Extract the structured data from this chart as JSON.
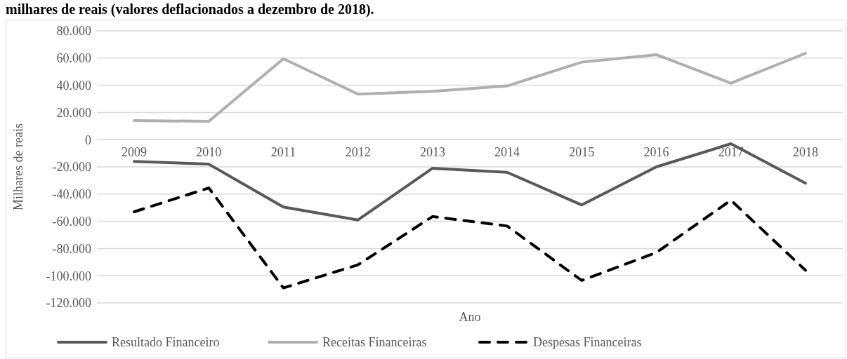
{
  "chart_data": {
    "type": "line",
    "title": "milhares de reais (valores deflacionados a dezembro de 2018).",
    "xlabel": "Ano",
    "ylabel": "Milhares de reais",
    "categories": [
      "2009",
      "2010",
      "2011",
      "2012",
      "2013",
      "2014",
      "2015",
      "2016",
      "2017",
      "2018"
    ],
    "series": [
      {
        "name": "Resultado Financeiro",
        "color": "#595959",
        "line_style": "solid",
        "values": [
          -16000,
          -18000,
          -49500,
          -59000,
          -21000,
          -24000,
          -48000,
          -20000,
          -3000,
          -32000
        ]
      },
      {
        "name": "Receitas Financeiras",
        "color": "#afafaf",
        "line_style": "solid",
        "values": [
          14000,
          13500,
          59500,
          33500,
          35500,
          39500,
          57000,
          62500,
          41500,
          63500
        ]
      },
      {
        "name": "Despesas Financeiras",
        "color": "#000000",
        "line_style": "dashed",
        "values": [
          -53000,
          -35500,
          -109000,
          -92000,
          -56500,
          -63500,
          -103500,
          -83000,
          -44500,
          -96000
        ]
      }
    ],
    "ylim": [
      -120000,
      80000
    ],
    "yticks": [
      {
        "value": -120000,
        "label": "-120.000"
      },
      {
        "value": -100000,
        "label": "-100.000"
      },
      {
        "value": -80000,
        "label": "-80.000"
      },
      {
        "value": -60000,
        "label": "-60.000"
      },
      {
        "value": -40000,
        "label": "-40.000"
      },
      {
        "value": -20000,
        "label": "-20.000"
      },
      {
        "value": 0,
        "label": "0"
      },
      {
        "value": 20000,
        "label": "20.000"
      },
      {
        "value": 40000,
        "label": "40.000"
      },
      {
        "value": 60000,
        "label": "60.000"
      },
      {
        "value": 80000,
        "label": "80.000"
      }
    ],
    "grid": "y",
    "legend": "bottom"
  }
}
